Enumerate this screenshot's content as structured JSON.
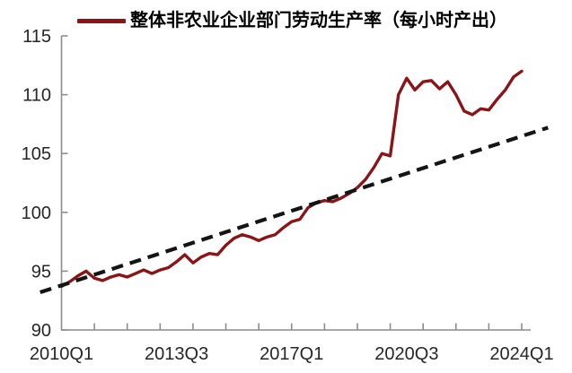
{
  "legend": {
    "items": [
      {
        "label": "整体非农业企业部门劳动生产率（每小时产出）",
        "swatch_color": "#8a1518",
        "style": "solid-line"
      }
    ]
  },
  "colors": {
    "series_red": "#8a1518",
    "trend_black": "#141414",
    "axis_gray": "#8c8c8c",
    "tick_text": "#262626"
  },
  "chart_data": {
    "type": "line",
    "title": "",
    "legend_position": "top",
    "grid": false,
    "x_axis": {
      "unit": "quarter",
      "start": "2010Q1",
      "end": "2024Q1",
      "tick_labels": [
        "2010Q1",
        "2013Q3",
        "2017Q1",
        "2020Q3",
        "2024Q1"
      ],
      "tick_label_positions_quarters": [
        0,
        14,
        28,
        42,
        56
      ],
      "minor_tick_every_quarters": 4
    },
    "y_axis": {
      "min": 90,
      "max": 115,
      "ticks": [
        90,
        95,
        100,
        105,
        110,
        115
      ]
    },
    "series": [
      {
        "name": "整体非农业企业部门劳动生产率（每小时产出）",
        "color": "#8a1518",
        "line_style": "solid",
        "x_start_quarter": "2010Q1",
        "x_step_quarters": 1,
        "values": [
          93.7,
          94.1,
          94.6,
          95.0,
          94.4,
          94.2,
          94.5,
          94.7,
          94.5,
          94.8,
          95.1,
          94.8,
          95.1,
          95.3,
          95.8,
          96.4,
          95.7,
          96.2,
          96.5,
          96.4,
          97.2,
          97.8,
          98.1,
          97.9,
          97.6,
          97.9,
          98.1,
          98.7,
          99.2,
          99.4,
          100.4,
          100.8,
          101.0,
          100.9,
          101.2,
          101.6,
          102.1,
          102.8,
          103.8,
          105.0,
          104.8,
          110.0,
          111.4,
          110.4,
          111.1,
          111.2,
          110.5,
          111.1,
          110.0,
          108.6,
          108.3,
          108.8,
          108.7,
          109.6,
          110.4,
          111.5,
          112.0
        ]
      }
    ],
    "trendline": {
      "style": "dashed",
      "color": "#141414",
      "start": {
        "quarters_from_2010Q1": -2.6,
        "value": 93.2
      },
      "end": {
        "quarters_from_2010Q1": 59.2,
        "value": 107.2
      }
    }
  }
}
